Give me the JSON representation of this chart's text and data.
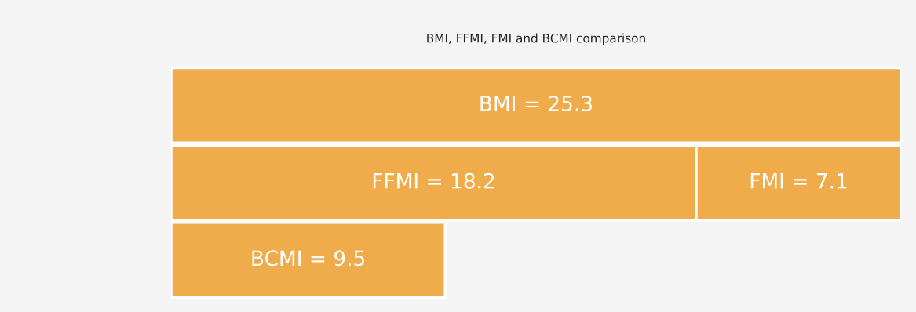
{
  "chart_data": {
    "type": "bar",
    "orientation": "horizontal",
    "stacked": true,
    "title": "BMI, FFMI, FMI and BCMI comparison",
    "categories": [
      null,
      null,
      null
    ],
    "series": [
      {
        "color": "#f0ac4b",
        "values": [
          25.3,
          18.2,
          9.5
        ],
        "value_labels": [
          "BMI = 25.3",
          "FFMI = 18.2",
          "BCMI = 9.5"
        ]
      },
      {
        "color": "#f0ac4b",
        "values": [
          null,
          7.1,
          null
        ],
        "value_labels": [
          null,
          "FMI = 7.1",
          null
        ]
      }
    ],
    "xlim": [
      0,
      25.3
    ],
    "tick_labels": false,
    "grid": false,
    "legend": false
  }
}
